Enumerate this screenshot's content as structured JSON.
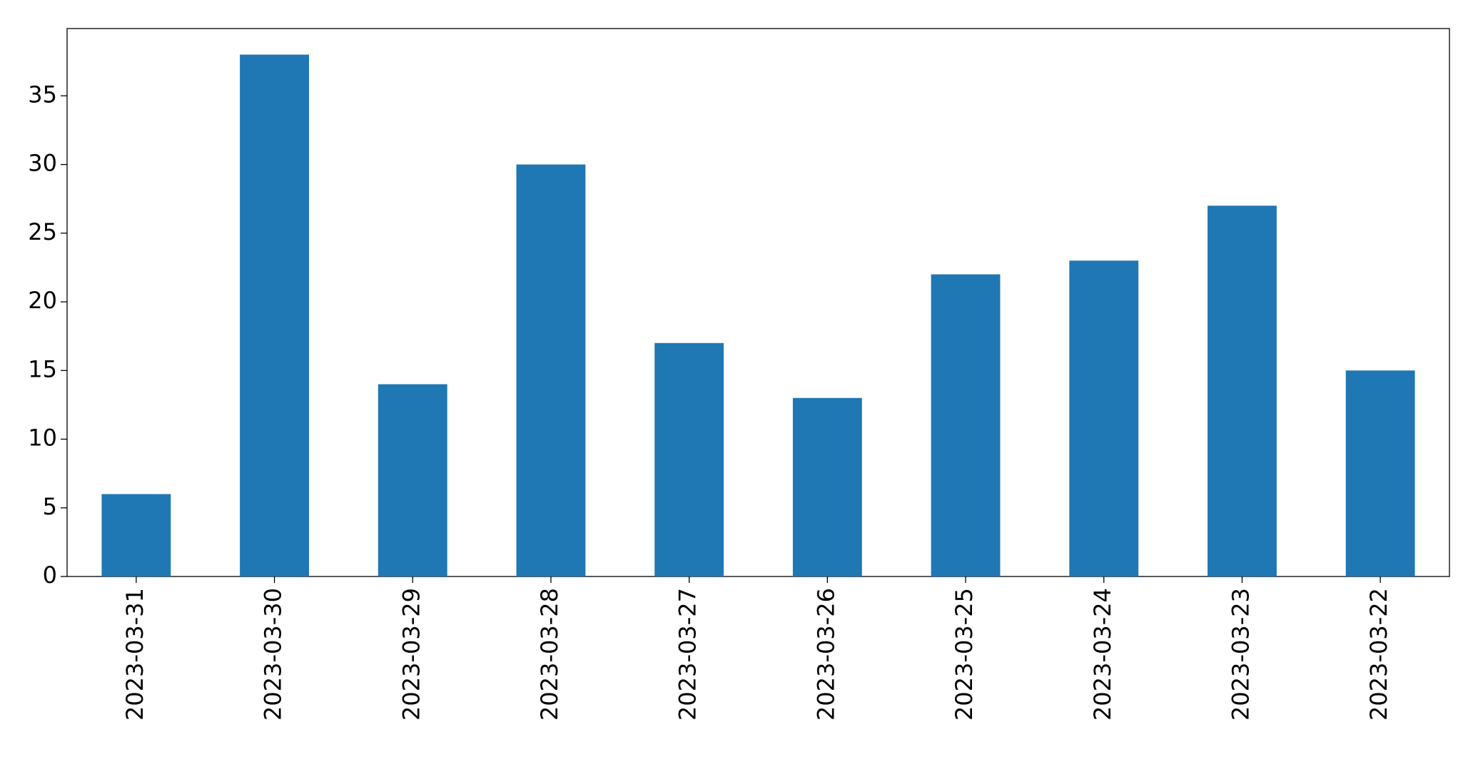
{
  "chart_data": {
    "type": "bar",
    "categories": [
      "2023-03-31",
      "2023-03-30",
      "2023-03-29",
      "2023-03-28",
      "2023-03-27",
      "2023-03-26",
      "2023-03-25",
      "2023-03-24",
      "2023-03-23",
      "2023-03-22"
    ],
    "values": [
      6,
      38,
      14,
      30,
      17,
      13,
      22,
      23,
      27,
      15
    ],
    "color": "#1f77b4",
    "ylim": [
      0,
      39.9
    ],
    "yticks": [
      0,
      5,
      10,
      15,
      20,
      25,
      30,
      35
    ],
    "grid": false
  }
}
